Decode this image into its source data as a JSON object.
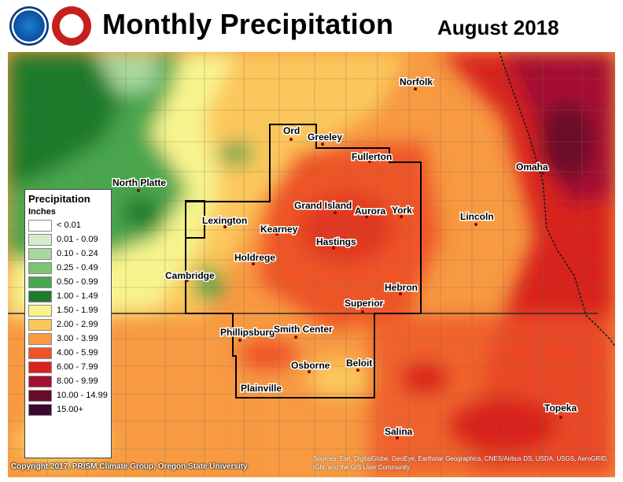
{
  "title": "Monthly Precipitation",
  "period": "August 2018",
  "legend": {
    "title": "Precipitation",
    "unit": "Inches",
    "items": [
      {
        "label": "< 0.01",
        "color": "#ffffff"
      },
      {
        "label": "0.01 - 0.09",
        "color": "#d4eccc"
      },
      {
        "label": "0.10 - 0.24",
        "color": "#a8d89e"
      },
      {
        "label": "0.25 - 0.49",
        "color": "#7cc374"
      },
      {
        "label": "0.50 - 0.99",
        "color": "#4aa64e"
      },
      {
        "label": "1.00 - 1.49",
        "color": "#1e7a2c"
      },
      {
        "label": "1.50 - 1.99",
        "color": "#f7f48e"
      },
      {
        "label": "2.00 - 2.99",
        "color": "#fbc75c"
      },
      {
        "label": "3.00 - 3.99",
        "color": "#f79a42"
      },
      {
        "label": "4.00 - 5.99",
        "color": "#ee5428"
      },
      {
        "label": "6.00 - 7.99",
        "color": "#d8241e"
      },
      {
        "label": "8.00 - 9.99",
        "color": "#a51030"
      },
      {
        "label": "10.00 - 14.99",
        "color": "#6a0a2a"
      },
      {
        "label": "15.00+",
        "color": "#3a0830"
      }
    ]
  },
  "cities": {
    "north_platte": "North Platte",
    "ord": "Ord",
    "greeley": "Greeley",
    "norfolk": "Norfolk",
    "fullerton": "Fullerton",
    "omaha": "Omaha",
    "lexington": "Lexington",
    "grand_island": "Grand Island",
    "aurora": "Aurora",
    "york": "York",
    "lincoln": "Lincoln",
    "kearney": "Kearney",
    "hastings": "Hastings",
    "holdrege": "Holdrege",
    "cambridge": "Cambridge",
    "hebron": "Hebron",
    "superior": "Superior",
    "phillipsburg": "Phillipsburg",
    "smith_center": "Smith Center",
    "osborne": "Osborne",
    "beloit": "Beloit",
    "plainville": "Plainville",
    "topeka": "Topeka",
    "salina": "Salina"
  },
  "copyright": "Copyright 2017, PRISM Climate Group, Oregon State University",
  "sources": "Sources: Esri, DigitalGlobe, GeoEye, Earthstar Geographics, CNES/Airbus DS, USDA, USGS, AeroGRID, IGN, and the GIS User Community"
}
